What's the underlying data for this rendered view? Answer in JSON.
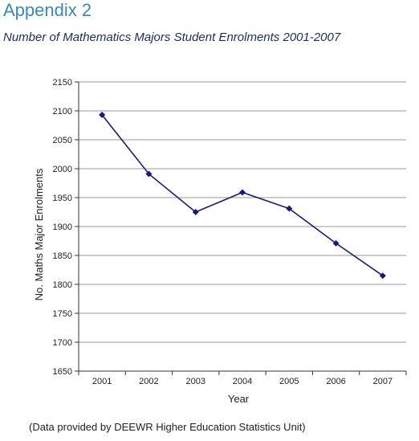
{
  "page": {
    "heading": "Appendix 2",
    "subheading": "Number of Mathematics Majors Student Enrolments 2001-2007",
    "footnote": "(Data provided by DEEWR Higher Education Statistics Unit)"
  },
  "chart_data": {
    "type": "line",
    "title": "",
    "xlabel": "Year",
    "ylabel": "No. Maths Major Enrolments",
    "categories": [
      "2001",
      "2002",
      "2003",
      "2004",
      "2005",
      "2006",
      "2007"
    ],
    "series": [
      {
        "values": [
          2093,
          1991,
          1925,
          1959,
          1931,
          1871,
          1815
        ]
      }
    ],
    "ylim": [
      1650,
      2150
    ],
    "yticks": [
      1650,
      1700,
      1750,
      1800,
      1850,
      1900,
      1950,
      2000,
      2050,
      2100,
      2150
    ],
    "grid": true,
    "legend": "none",
    "colors": {
      "line": "#1a1a7a",
      "marker": "#1a1a7a",
      "grid": "#777777",
      "axis": "#333333"
    },
    "marker": "diamond"
  }
}
